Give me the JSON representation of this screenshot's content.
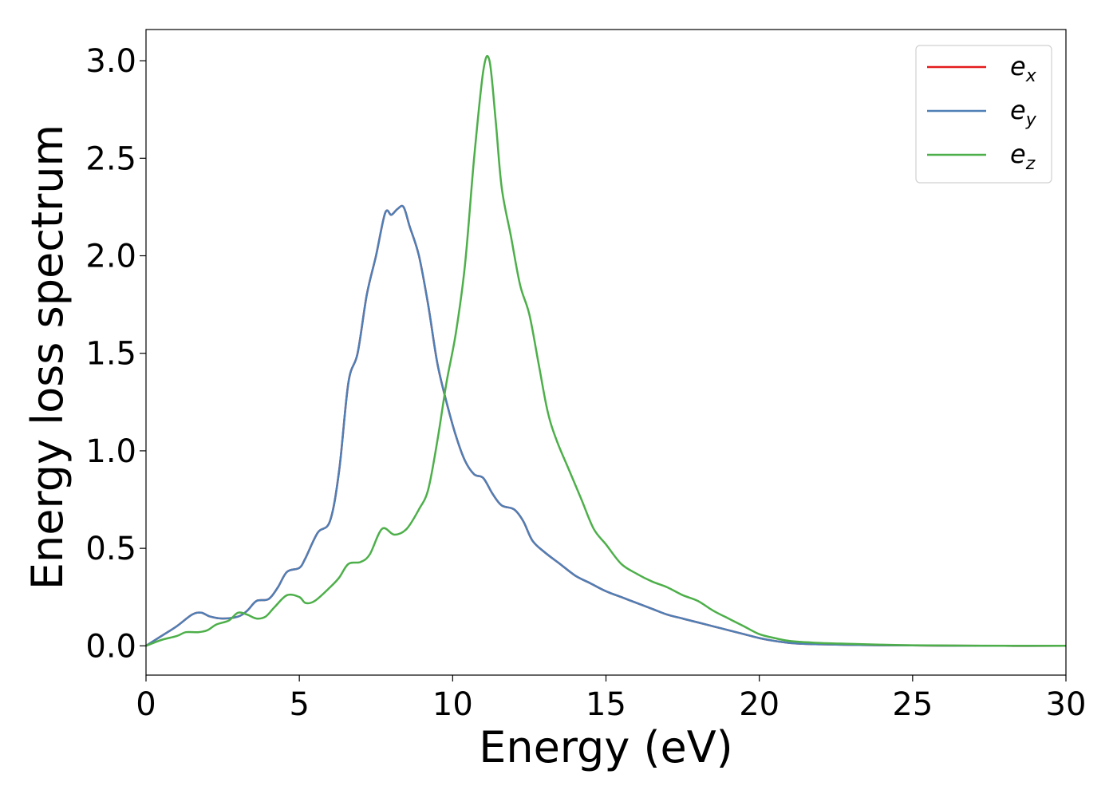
{
  "chart_data": {
    "type": "line",
    "title": "",
    "xlabel": "Energy (eV)",
    "ylabel": "Energy loss spectrum",
    "xlim": [
      0,
      30
    ],
    "ylim": [
      -0.15,
      3.16
    ],
    "xticks": [
      0,
      5,
      10,
      15,
      20,
      25,
      30
    ],
    "xtick_labels": [
      "0",
      "5",
      "10",
      "15",
      "20",
      "25",
      "30"
    ],
    "yticks": [
      0.0,
      0.5,
      1.0,
      1.5,
      2.0,
      2.5,
      3.0
    ],
    "ytick_labels": [
      "0.0",
      "0.5",
      "1.0",
      "1.5",
      "2.0",
      "2.5",
      "3.0"
    ],
    "grid": false,
    "legend": {
      "position": "top-right"
    },
    "series": [
      {
        "name": "e",
        "subscript": "x",
        "color": "#e41a1c",
        "x": [
          0,
          0.5,
          1.0,
          1.5,
          1.8,
          2.1,
          2.5,
          3.0,
          3.3,
          3.6,
          4.0,
          4.3,
          4.6,
          5.0,
          5.2,
          5.6,
          6.0,
          6.3,
          6.6,
          6.9,
          7.2,
          7.5,
          7.8,
          8.0,
          8.2,
          8.4,
          8.6,
          8.9,
          9.2,
          9.5,
          9.8,
          10.1,
          10.4,
          10.7,
          11.0,
          11.3,
          11.6,
          12.0,
          12.3,
          12.6,
          13.0,
          13.5,
          14.0,
          14.5,
          15.0,
          15.5,
          16.0,
          16.5,
          17.0,
          17.5,
          18.0,
          18.5,
          19.0,
          19.5,
          20.0,
          20.5,
          21.0,
          21.5,
          22.0,
          23.0,
          24.0,
          25.0,
          26.0,
          28.0,
          30.0
        ],
        "y": [
          0.0,
          0.05,
          0.1,
          0.16,
          0.17,
          0.15,
          0.14,
          0.15,
          0.18,
          0.23,
          0.24,
          0.3,
          0.38,
          0.4,
          0.45,
          0.58,
          0.64,
          0.9,
          1.35,
          1.5,
          1.8,
          2.0,
          2.22,
          2.21,
          2.24,
          2.25,
          2.15,
          2.0,
          1.75,
          1.45,
          1.25,
          1.08,
          0.95,
          0.88,
          0.86,
          0.78,
          0.72,
          0.7,
          0.64,
          0.54,
          0.48,
          0.42,
          0.36,
          0.32,
          0.28,
          0.25,
          0.22,
          0.19,
          0.16,
          0.14,
          0.12,
          0.1,
          0.08,
          0.06,
          0.04,
          0.025,
          0.015,
          0.01,
          0.008,
          0.005,
          0.003,
          0.002,
          0.001,
          0.0,
          0.0
        ]
      },
      {
        "name": "e",
        "subscript": "y",
        "color": "#4e7fb5",
        "x": [
          0,
          0.5,
          1.0,
          1.5,
          1.8,
          2.1,
          2.5,
          3.0,
          3.3,
          3.6,
          4.0,
          4.3,
          4.6,
          5.0,
          5.2,
          5.6,
          6.0,
          6.3,
          6.6,
          6.9,
          7.2,
          7.5,
          7.8,
          8.0,
          8.2,
          8.4,
          8.6,
          8.9,
          9.2,
          9.5,
          9.8,
          10.1,
          10.4,
          10.7,
          11.0,
          11.3,
          11.6,
          12.0,
          12.3,
          12.6,
          13.0,
          13.5,
          14.0,
          14.5,
          15.0,
          15.5,
          16.0,
          16.5,
          17.0,
          17.5,
          18.0,
          18.5,
          19.0,
          19.5,
          20.0,
          20.5,
          21.0,
          21.5,
          22.0,
          23.0,
          24.0,
          25.0,
          26.0,
          28.0,
          30.0
        ],
        "y": [
          0.0,
          0.05,
          0.1,
          0.16,
          0.17,
          0.15,
          0.14,
          0.15,
          0.18,
          0.23,
          0.24,
          0.3,
          0.38,
          0.4,
          0.45,
          0.58,
          0.64,
          0.9,
          1.35,
          1.5,
          1.8,
          2.0,
          2.22,
          2.21,
          2.24,
          2.25,
          2.15,
          2.0,
          1.75,
          1.45,
          1.25,
          1.08,
          0.95,
          0.88,
          0.86,
          0.78,
          0.72,
          0.7,
          0.64,
          0.54,
          0.48,
          0.42,
          0.36,
          0.32,
          0.28,
          0.25,
          0.22,
          0.19,
          0.16,
          0.14,
          0.12,
          0.1,
          0.08,
          0.06,
          0.04,
          0.025,
          0.015,
          0.01,
          0.008,
          0.005,
          0.003,
          0.002,
          0.001,
          0.0,
          0.0
        ]
      },
      {
        "name": "e",
        "subscript": "z",
        "color": "#4daf4a",
        "x": [
          0,
          0.5,
          1.0,
          1.3,
          1.7,
          2.0,
          2.3,
          2.7,
          3.0,
          3.3,
          3.6,
          3.9,
          4.2,
          4.6,
          5.0,
          5.2,
          5.5,
          6.0,
          6.3,
          6.6,
          7.0,
          7.3,
          7.7,
          8.1,
          8.5,
          8.9,
          9.2,
          9.5,
          9.8,
          10.1,
          10.4,
          10.7,
          11.0,
          11.2,
          11.4,
          11.6,
          11.9,
          12.2,
          12.5,
          12.8,
          13.1,
          13.4,
          13.8,
          14.2,
          14.6,
          15.0,
          15.5,
          16.0,
          16.5,
          17.0,
          17.5,
          18.0,
          18.5,
          19.0,
          19.5,
          20.0,
          20.5,
          21.0,
          22.0,
          23.0,
          24.0,
          25.0,
          27.0,
          30.0
        ],
        "y": [
          0.0,
          0.03,
          0.05,
          0.07,
          0.07,
          0.08,
          0.11,
          0.13,
          0.17,
          0.16,
          0.14,
          0.15,
          0.2,
          0.26,
          0.25,
          0.22,
          0.23,
          0.3,
          0.35,
          0.42,
          0.43,
          0.47,
          0.6,
          0.57,
          0.6,
          0.7,
          0.8,
          1.05,
          1.35,
          1.6,
          1.95,
          2.5,
          2.95,
          3.0,
          2.7,
          2.35,
          2.1,
          1.85,
          1.7,
          1.45,
          1.2,
          1.05,
          0.9,
          0.75,
          0.6,
          0.52,
          0.42,
          0.37,
          0.33,
          0.3,
          0.26,
          0.23,
          0.18,
          0.14,
          0.1,
          0.06,
          0.04,
          0.025,
          0.015,
          0.01,
          0.006,
          0.003,
          0.001,
          0.0
        ]
      }
    ]
  }
}
